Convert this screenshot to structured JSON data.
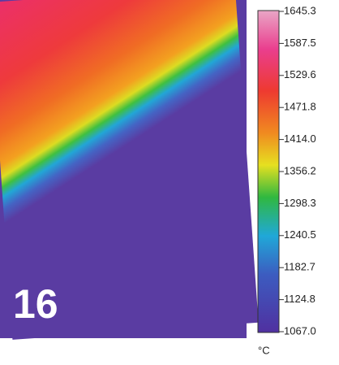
{
  "panel_label": "16",
  "colorbar": {
    "unit": "°C",
    "ticks": [
      "1645.3",
      "1587.5",
      "1529.6",
      "1471.8",
      "1414.0",
      "1356.2",
      "1298.3",
      "1240.5",
      "1182.7",
      "1124.8",
      "1067.0"
    ]
  }
}
